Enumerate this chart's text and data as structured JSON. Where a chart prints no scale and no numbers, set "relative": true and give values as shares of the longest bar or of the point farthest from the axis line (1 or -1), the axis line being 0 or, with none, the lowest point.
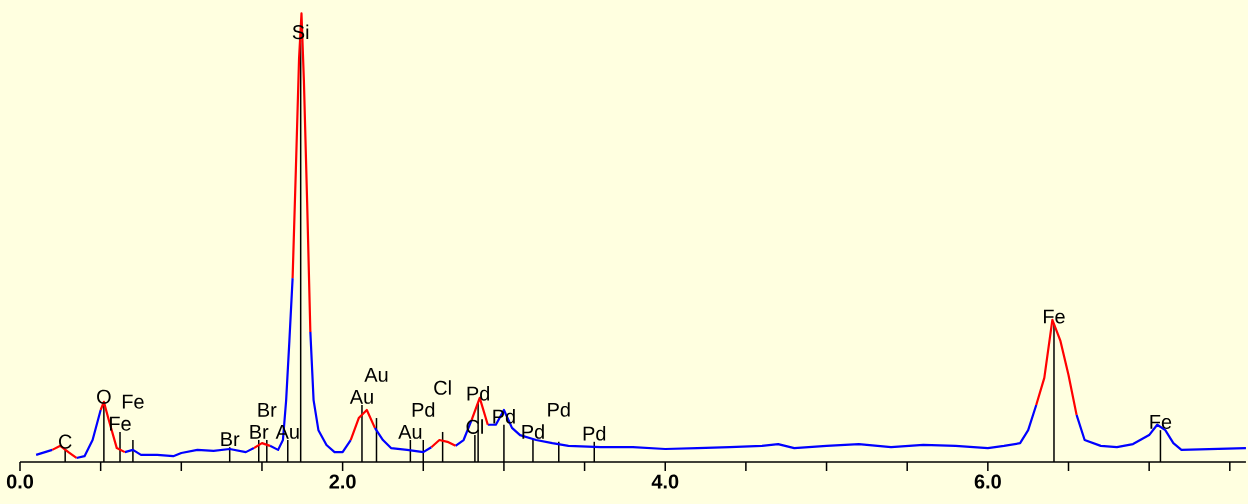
{
  "chart_data": {
    "type": "line",
    "relative": true,
    "marker": "none",
    "tick_labels": "x",
    "x": [
      0.1,
      0.2,
      0.25,
      0.3,
      0.35,
      0.4,
      0.45,
      0.5,
      0.52,
      0.55,
      0.6,
      0.65,
      0.7,
      0.75,
      0.85,
      0.95,
      1.0,
      1.1,
      1.2,
      1.3,
      1.4,
      1.45,
      1.5,
      1.55,
      1.6,
      1.63,
      1.65,
      1.67,
      1.69,
      1.71,
      1.73,
      1.745,
      1.76,
      1.78,
      1.8,
      1.82,
      1.85,
      1.9,
      1.95,
      2.0,
      2.05,
      2.1,
      2.15,
      2.2,
      2.25,
      2.3,
      2.4,
      2.5,
      2.55,
      2.6,
      2.65,
      2.7,
      2.75,
      2.8,
      2.85,
      2.9,
      2.95,
      3.0,
      3.05,
      3.1,
      3.2,
      3.3,
      3.4,
      3.6,
      3.8,
      4.0,
      4.2,
      4.4,
      4.6,
      4.7,
      4.8,
      5.0,
      5.2,
      5.4,
      5.6,
      5.8,
      6.0,
      6.1,
      6.2,
      6.25,
      6.3,
      6.35,
      6.4,
      6.45,
      6.5,
      6.55,
      6.6,
      6.7,
      6.8,
      6.9,
      7.0,
      7.05,
      7.1,
      7.15,
      7.2,
      7.4,
      7.6
    ],
    "series": [
      {
        "color": "#0000ff",
        "values": [
          0.016,
          0.027,
          null,
          null,
          0.009,
          0.013,
          0.049,
          0.116,
          null,
          null,
          null,
          0.022,
          0.027,
          0.016,
          0.016,
          0.013,
          0.02,
          0.027,
          0.025,
          0.029,
          0.022,
          0.031,
          null,
          0.036,
          0.027,
          0.049,
          0.138,
          0.27,
          0.41,
          null,
          null,
          null,
          null,
          null,
          0.29,
          0.138,
          0.071,
          0.038,
          0.022,
          0.022,
          0.049,
          null,
          null,
          0.076,
          0.049,
          0.031,
          0.027,
          0.022,
          0.033,
          null,
          null,
          0.036,
          0.049,
          0.094,
          null,
          0.083,
          0.083,
          0.116,
          0.076,
          0.06,
          0.049,
          0.042,
          0.036,
          0.033,
          0.033,
          0.029,
          0.031,
          0.033,
          0.036,
          0.04,
          0.031,
          0.036,
          0.04,
          0.033,
          0.038,
          0.036,
          0.031,
          0.036,
          0.042,
          0.071,
          0.127,
          null,
          null,
          null,
          null,
          0.105,
          0.049,
          0.036,
          0.033,
          0.04,
          0.06,
          0.083,
          0.071,
          0.042,
          0.027,
          0.029,
          0.031
        ]
      },
      {
        "color": "#ff0000",
        "values": [
          null,
          0.027,
          0.036,
          0.022,
          0.009,
          null,
          null,
          0.116,
          0.134,
          0.094,
          0.031,
          0.022,
          null,
          null,
          null,
          null,
          null,
          null,
          null,
          null,
          null,
          0.031,
          0.042,
          0.036,
          null,
          null,
          null,
          null,
          0.41,
          0.65,
          0.9,
          1.0,
          0.85,
          0.58,
          0.29,
          null,
          null,
          null,
          null,
          null,
          0.049,
          0.098,
          0.116,
          0.076,
          null,
          null,
          null,
          null,
          0.033,
          0.049,
          0.045,
          0.036,
          null,
          0.094,
          0.143,
          0.083,
          null,
          null,
          null,
          null,
          null,
          null,
          null,
          null,
          null,
          null,
          null,
          null,
          null,
          null,
          null,
          null,
          null,
          null,
          null,
          null,
          null,
          null,
          null,
          null,
          0.127,
          0.1875,
          0.317,
          0.27,
          0.194,
          0.105,
          null,
          null,
          null,
          null,
          null,
          null,
          null,
          null,
          null,
          null,
          null
        ]
      },
      {
        "type": "bar",
        "color": "#000000",
        "x": [
          0.28,
          0.52,
          0.62,
          0.7,
          1.3,
          1.48,
          1.53,
          1.66,
          1.74,
          2.12,
          2.21,
          2.42,
          2.5,
          2.62,
          2.82,
          2.84,
          3.0,
          3.18,
          3.34,
          3.56,
          6.41,
          7.07
        ],
        "values": [
          0.027,
          0.127,
          0.067,
          0.049,
          0.033,
          0.049,
          0.049,
          0.049,
          0.94,
          0.127,
          0.098,
          0.049,
          0.049,
          0.067,
          0.06,
          0.134,
          0.083,
          0.049,
          0.045,
          0.045,
          0.306,
          0.071
        ]
      }
    ],
    "annotations": [
      {
        "text": "C",
        "x": 0.28,
        "y": 0.027
      },
      {
        "text": "O",
        "x": 0.52,
        "y": 0.127
      },
      {
        "text": "Fe",
        "x": 0.62,
        "y": 0.067
      },
      {
        "text": "Fe",
        "x": 0.7,
        "y": 0.049
      },
      {
        "text": "Br",
        "x": 1.3,
        "y": 0.033
      },
      {
        "text": "Br",
        "x": 1.48,
        "y": 0.049
      },
      {
        "text": "Br",
        "x": 1.53,
        "y": 0.049
      },
      {
        "text": "Au",
        "x": 1.66,
        "y": 0.049
      },
      {
        "text": "Si",
        "x": 1.74,
        "y": 0.94
      },
      {
        "text": "Au",
        "x": 2.12,
        "y": 0.127
      },
      {
        "text": "Au",
        "x": 2.21,
        "y": 0.098
      },
      {
        "text": "Au",
        "x": 2.42,
        "y": 0.049
      },
      {
        "text": "Pd",
        "x": 2.5,
        "y": 0.049
      },
      {
        "text": "Cl",
        "x": 2.62,
        "y": 0.067
      },
      {
        "text": "Cl",
        "x": 2.82,
        "y": 0.06
      },
      {
        "text": "Pd",
        "x": 2.84,
        "y": 0.134
      },
      {
        "text": "Pd",
        "x": 3.0,
        "y": 0.083
      },
      {
        "text": "Pd",
        "x": 3.18,
        "y": 0.049
      },
      {
        "text": "Pd",
        "x": 3.34,
        "y": 0.045
      },
      {
        "text": "Pd",
        "x": 3.56,
        "y": 0.045
      },
      {
        "text": "Fe",
        "x": 6.41,
        "y": 0.306
      },
      {
        "text": "Fe",
        "x": 7.07,
        "y": 0.071
      }
    ],
    "xlim": [
      0,
      7.6
    ],
    "xticks": [
      {
        "value": 0,
        "label": "0.0"
      },
      {
        "value": 0.5,
        "label": null
      },
      {
        "value": 1,
        "label": null
      },
      {
        "value": 1.5,
        "label": null
      },
      {
        "value": 2,
        "label": "2.0"
      },
      {
        "value": 2.5,
        "label": null
      },
      {
        "value": 3,
        "label": null
      },
      {
        "value": 3.5,
        "label": null
      },
      {
        "value": 4,
        "label": "4.0"
      },
      {
        "value": 4.5,
        "label": null
      },
      {
        "value": 5,
        "label": null
      },
      {
        "value": 5.5,
        "label": null
      },
      {
        "value": 6,
        "label": "6.0"
      },
      {
        "value": 6.5,
        "label": null
      },
      {
        "value": 7,
        "label": null
      },
      {
        "value": 7.5,
        "label": null
      }
    ]
  }
}
